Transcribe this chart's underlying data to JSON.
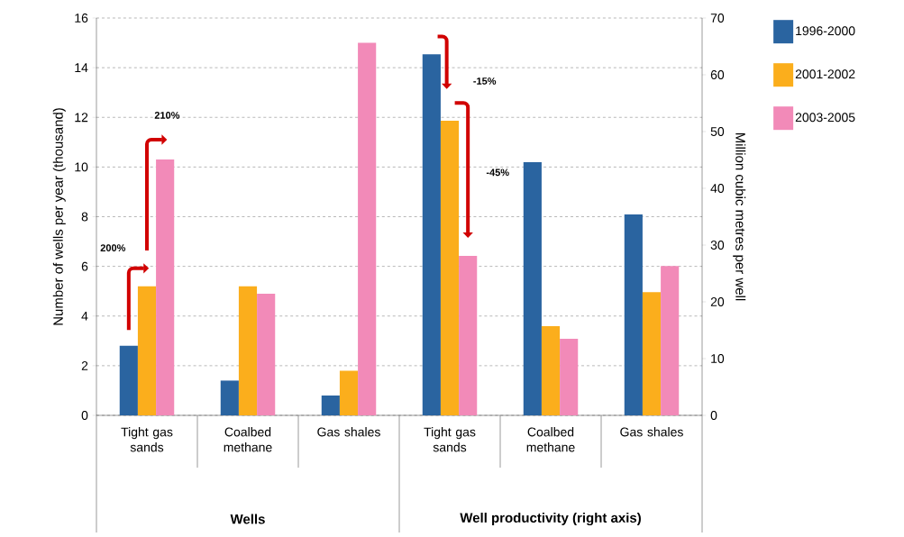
{
  "chart_data": {
    "type": "bar",
    "categories": [
      "Tight gas sands",
      "Coalbed methane",
      "Gas shales",
      "Tight gas sands",
      "Coalbed methane",
      "Gas shales"
    ],
    "series": [
      {
        "name": "1996-2000",
        "color": "#2a64a0",
        "values": [
          2.8,
          1.4,
          0.8,
          null,
          null,
          null
        ]
      },
      {
        "name": "2001-2002",
        "color": "#fbae1c",
        "values": [
          5.2,
          5.2,
          1.8,
          null,
          null,
          null
        ]
      },
      {
        "name": "2003-2005",
        "color": "#f28ab8",
        "values": [
          10.3,
          4.9,
          15.0,
          null,
          null,
          null
        ]
      },
      {
        "color": "#2a64a0",
        "axis": "y2",
        "values": [
          null,
          null,
          null,
          63.6,
          44.6,
          35.4
        ]
      },
      {
        "color": "#fbae1c",
        "axis": "y2",
        "values": [
          null,
          null,
          null,
          51.9,
          15.7,
          21.7
        ]
      },
      {
        "color": "#f28ab8",
        "axis": "y2",
        "values": [
          null,
          null,
          null,
          28.1,
          13.5,
          26.3
        ]
      }
    ],
    "ylabel": "Number of wells per year (thousand)",
    "y2label": "Million cubic metres per well",
    "ylim": [
      0,
      16
    ],
    "yticks": [
      0,
      2,
      4,
      6,
      8,
      10,
      12,
      14,
      16
    ],
    "y2lim": [
      0,
      70
    ],
    "y2ticks": [
      0,
      10,
      20,
      30,
      40,
      50,
      60,
      70
    ],
    "grid": "y",
    "legend": "top right",
    "annotations": [
      "200%",
      "210%",
      "-15%",
      "-45%",
      "Wells",
      "Well productivity (right axis)"
    ]
  }
}
